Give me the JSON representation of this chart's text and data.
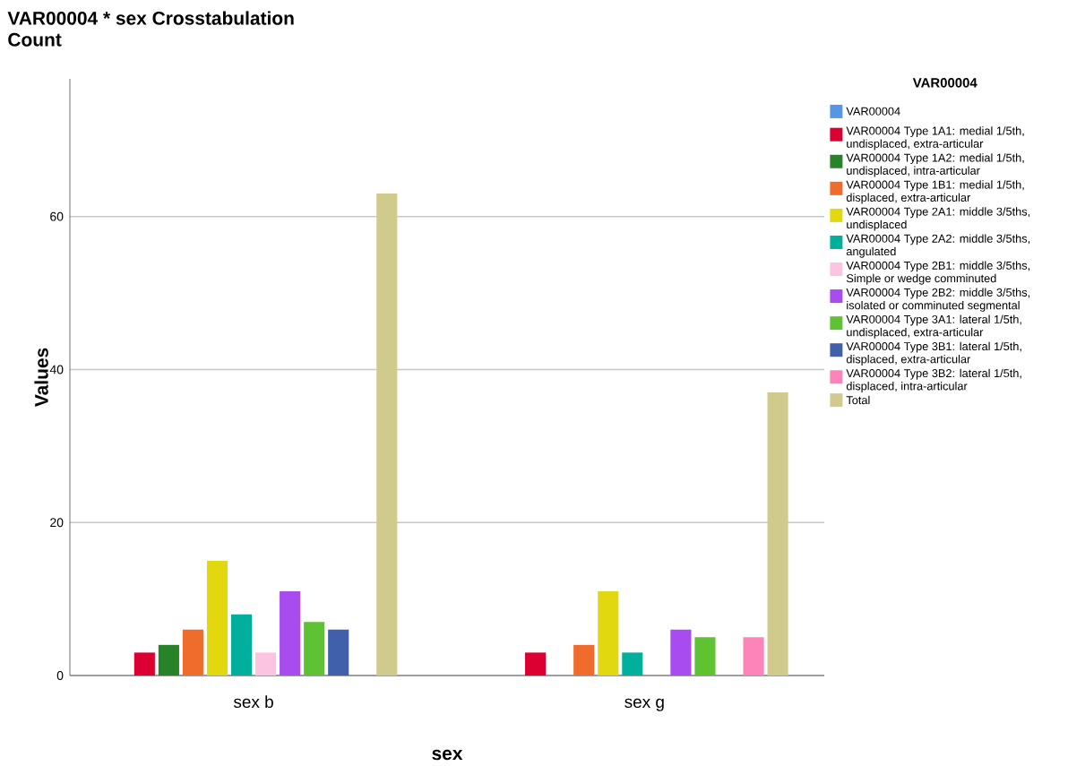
{
  "chart_data": {
    "type": "bar",
    "title": "VAR00004 * sex Crosstabulation",
    "subtitle": "Count",
    "xlabel": "sex",
    "ylabel": "Values",
    "legend_title": "VAR00004",
    "categories": [
      "sex b",
      "sex g"
    ],
    "series": [
      {
        "name": "VAR00004",
        "color": "#5596e6",
        "values": [
          null,
          null
        ]
      },
      {
        "name": "VAR00004 Type 1A1: medial 1/5th, undisplaced, extra-articular",
        "color": "#dc0032",
        "values": [
          3,
          3
        ]
      },
      {
        "name": "VAR00004 Type 1A2: medial 1/5th, undisplaced, intra-articular",
        "color": "#288228",
        "values": [
          4,
          null
        ]
      },
      {
        "name": "VAR00004 Type 1B1: medial 1/5th, displaced, extra-articular",
        "color": "#f06c2c",
        "values": [
          6,
          4
        ]
      },
      {
        "name": "VAR00004 Type 2A1: middle 3/5ths, undisplaced",
        "color": "#e2d810",
        "values": [
          15,
          11
        ]
      },
      {
        "name": "VAR00004 Type 2A2: middle 3/5ths, angulated",
        "color": "#00b09c",
        "values": [
          8,
          3
        ]
      },
      {
        "name": "VAR00004 Type 2B1: middle 3/5ths, Simple or wedge comminuted",
        "color": "#fcc4e0",
        "values": [
          3,
          null
        ]
      },
      {
        "name": "VAR00004 Type 2B2: middle 3/5ths, isolated or comminuted segmental",
        "color": "#a84cf0",
        "values": [
          11,
          6
        ]
      },
      {
        "name": "VAR00004 Type 3A1: lateral 1/5th, undisplaced, extra-articular",
        "color": "#5ec232",
        "values": [
          7,
          5
        ]
      },
      {
        "name": "VAR00004 Type 3B1: lateral 1/5th, displaced, extra-articular",
        "color": "#4060ac",
        "values": [
          6,
          null
        ]
      },
      {
        "name": "VAR00004 Type 3B2: lateral 1/5th, displaced, intra-articular",
        "color": "#fc84b8",
        "values": [
          null,
          5
        ]
      },
      {
        "name": "Total",
        "color": "#d0ca8c",
        "values": [
          63,
          37
        ]
      }
    ],
    "ylim": [
      0,
      78
    ],
    "yticks": [
      0,
      20,
      40,
      60
    ],
    "grid": "y",
    "legend": "right"
  }
}
